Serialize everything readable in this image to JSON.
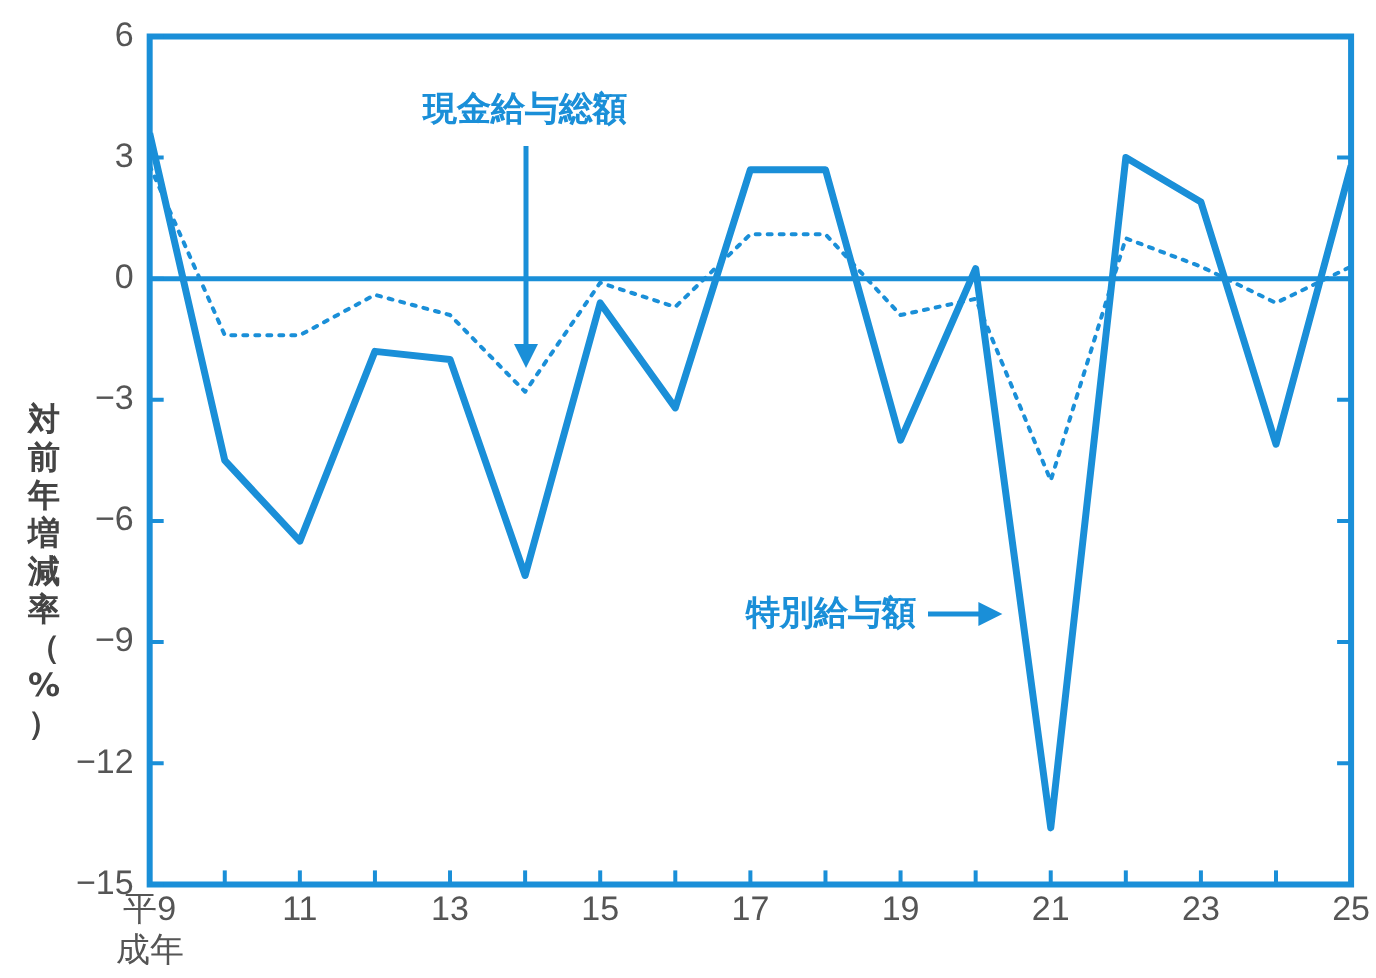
{
  "chart_data": {
    "type": "line",
    "ylabel": "対前年増減率（%）",
    "x": [
      9,
      10,
      11,
      12,
      13,
      14,
      15,
      16,
      17,
      18,
      19,
      20,
      21,
      22,
      23,
      24,
      25
    ],
    "series": [
      {
        "color": "#1a8fd8",
        "line_style": "solid",
        "values": [
          3.6,
          -4.5,
          -6.5,
          -1.8,
          -2.0,
          -7.35,
          -0.6,
          -3.2,
          2.7,
          2.7,
          -4.0,
          0.25,
          -13.6,
          3.0,
          1.9,
          -4.1,
          2.8
        ]
      },
      {
        "color": "#1a8fd8",
        "line_style": "dotted",
        "values": [
          2.8,
          -1.4,
          -1.4,
          -0.4,
          -0.9,
          -2.8,
          -0.1,
          -0.7,
          1.1,
          1.1,
          -0.9,
          -0.5,
          -5.0,
          1.0,
          0.3,
          -0.6,
          0.3
        ]
      }
    ],
    "xlim": [
      9,
      25
    ],
    "xticks": [
      {
        "value": 9,
        "label": "平9\n成年"
      },
      {
        "value": 10,
        "label": null
      },
      11,
      {
        "value": 12,
        "label": null
      },
      13,
      {
        "value": 14,
        "label": null
      },
      15,
      {
        "value": 16,
        "label": null
      },
      17,
      {
        "value": 18,
        "label": null
      },
      19,
      {
        "value": 20,
        "label": null
      },
      21,
      {
        "value": 22,
        "label": null
      },
      23,
      {
        "value": 24,
        "label": null
      },
      25
    ],
    "ylim": [
      -15,
      6
    ],
    "yticks": [
      -15,
      -12,
      -9,
      -6,
      -3,
      0,
      3,
      6
    ],
    "ref_lines": [
      {
        "axis": "y",
        "value": 0,
        "color": "#1a8fd8"
      }
    ],
    "annotations": [
      "現金給与総額",
      "特別給与額"
    ],
    "grid": false,
    "legend": false,
    "marker": "none"
  }
}
